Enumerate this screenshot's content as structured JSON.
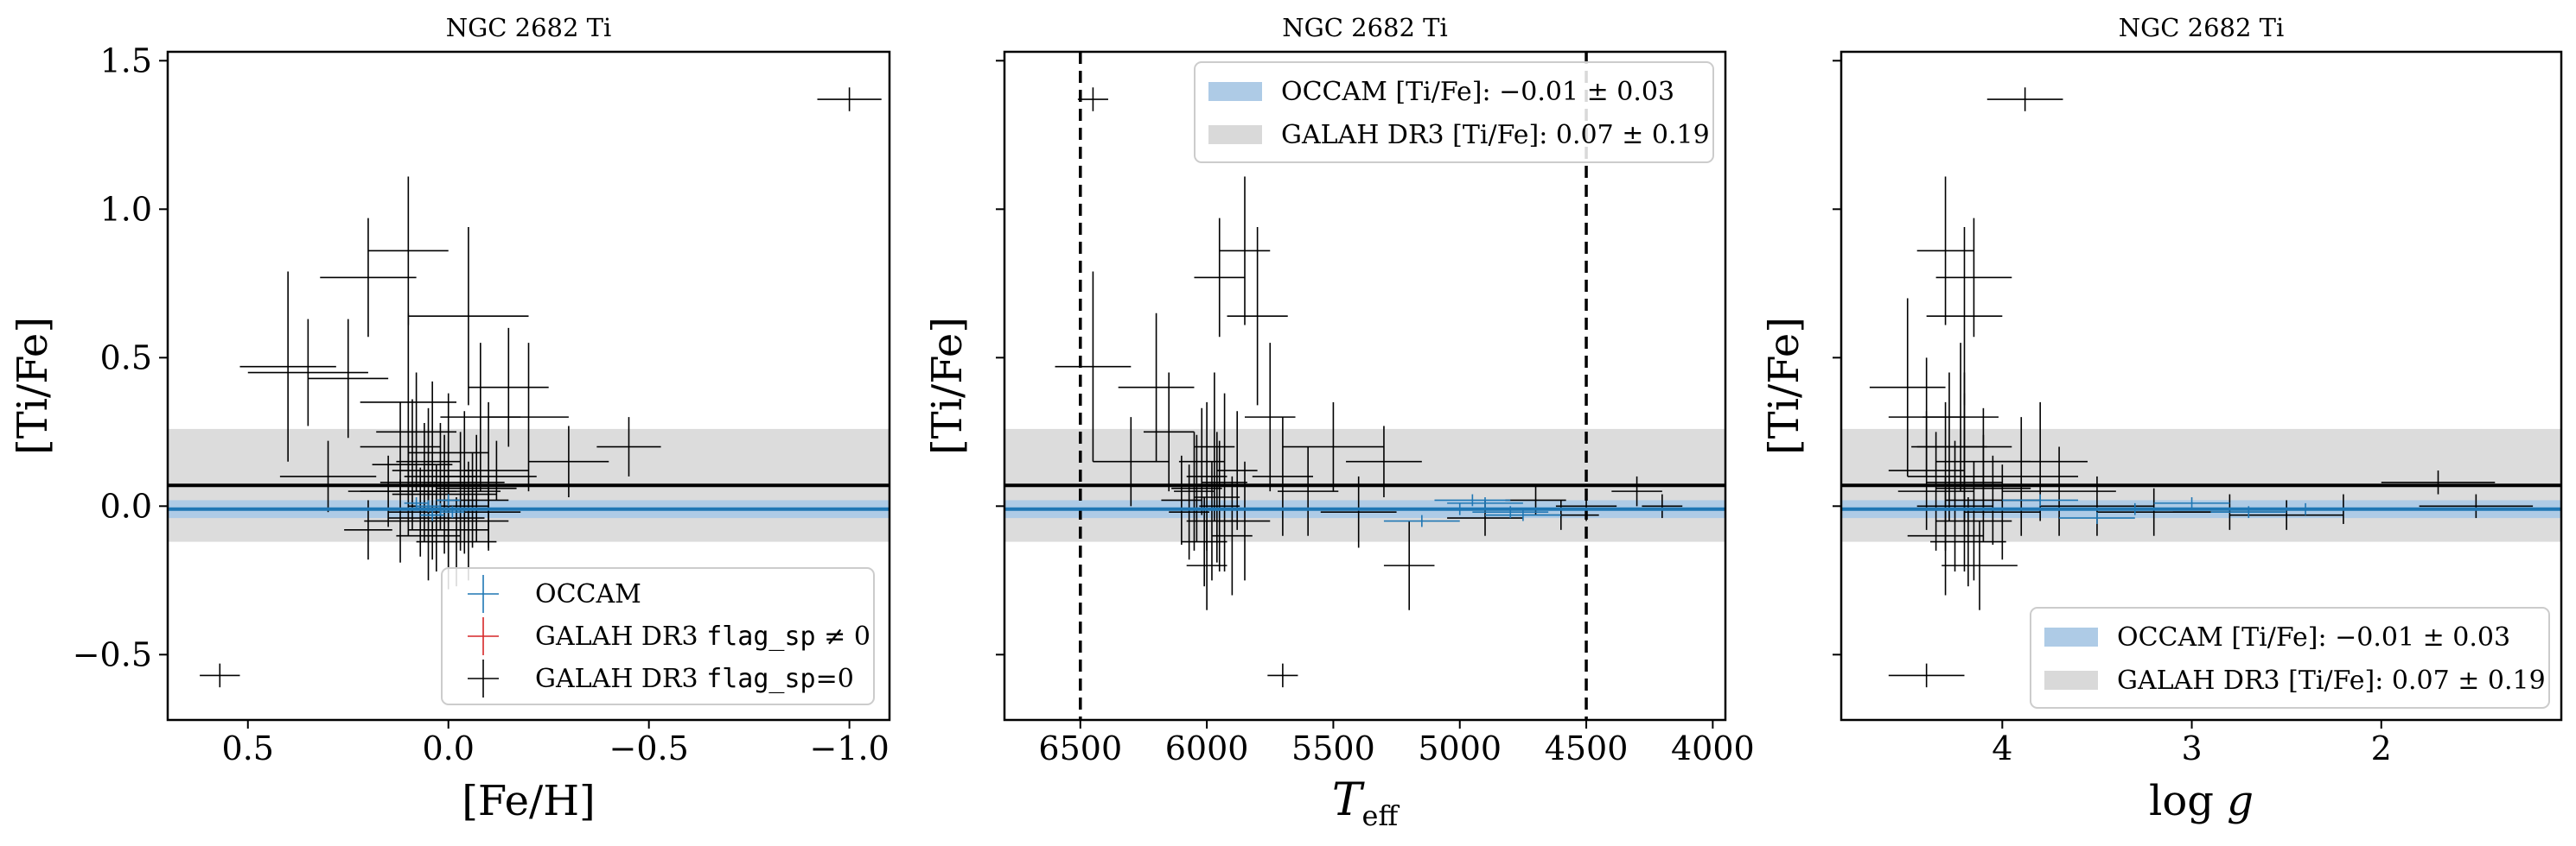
{
  "chart_data": [
    {
      "type": "scatter",
      "title": "NGC 2682 Ti",
      "xlabel": "[Fe/H]",
      "ylabel": "[Ti/Fe]",
      "xlim": [
        0.7,
        -1.1
      ],
      "ylim": [
        -0.72,
        1.53
      ],
      "x_ticks": [
        0.5,
        0.0,
        -0.5,
        -1.0
      ],
      "x_tick_labels": [
        "0.5",
        "0.0",
        "−0.5",
        "−1.0"
      ],
      "y_ticks": [
        -0.5,
        0.0,
        0.5,
        1.0,
        1.5
      ],
      "y_tick_labels": [
        "−0.5",
        "0.0",
        "0.5",
        "1.0",
        "1.5"
      ],
      "show_y_tick_labels": true,
      "vlines": [],
      "galah_band": {
        "center": 0.07,
        "sigma": 0.19
      },
      "occam_band": {
        "center": -0.01,
        "sigma": 0.03
      },
      "legend": {
        "placement": "lower-right",
        "kind": "markers",
        "entries": [
          {
            "label": "OCCAM",
            "color": "#1f77b4"
          },
          {
            "label": "GALAH DR3 ",
            "code": "flag_sp",
            "suffix": " ≠ 0",
            "color": "#d62728"
          },
          {
            "label": "GALAH DR3 ",
            "code": "flag_sp",
            "suffix": "=0",
            "color": "#000000"
          }
        ]
      },
      "occam_points": [
        {
          "x": 0.02,
          "y": -0.01,
          "xerr": 0.03,
          "yerr": 0.02
        },
        {
          "x": 0.05,
          "y": 0.0,
          "xerr": 0.03,
          "yerr": 0.02
        },
        {
          "x": -0.01,
          "y": -0.02,
          "xerr": 0.03,
          "yerr": 0.02
        },
        {
          "x": 0.08,
          "y": 0.01,
          "xerr": 0.03,
          "yerr": 0.02
        },
        {
          "x": 0.0,
          "y": 0.02,
          "xerr": 0.03,
          "yerr": 0.02
        },
        {
          "x": 0.04,
          "y": -0.03,
          "xerr": 0.03,
          "yerr": 0.02
        }
      ],
      "galah_points": [
        {
          "x": -1.0,
          "y": 1.37,
          "xerr": 0.08,
          "yerr": 0.04
        },
        {
          "x": 0.57,
          "y": -0.57,
          "xerr": 0.05,
          "yerr": 0.04
        },
        {
          "x": 0.1,
          "y": 0.86,
          "xerr": 0.1,
          "yerr": 0.25
        },
        {
          "x": 0.2,
          "y": 0.77,
          "xerr": 0.12,
          "yerr": 0.2
        },
        {
          "x": -0.05,
          "y": 0.64,
          "xerr": 0.15,
          "yerr": 0.3
        },
        {
          "x": 0.4,
          "y": 0.47,
          "xerr": 0.12,
          "yerr": 0.32
        },
        {
          "x": 0.35,
          "y": 0.45,
          "xerr": 0.15,
          "yerr": 0.18
        },
        {
          "x": 0.25,
          "y": 0.43,
          "xerr": 0.1,
          "yerr": 0.2
        },
        {
          "x": 0.1,
          "y": 0.35,
          "xerr": 0.12,
          "yerr": 0.3
        },
        {
          "x": -0.15,
          "y": 0.4,
          "xerr": 0.1,
          "yerr": 0.2
        },
        {
          "x": -0.2,
          "y": 0.3,
          "xerr": 0.1,
          "yerr": 0.25
        },
        {
          "x": -0.45,
          "y": 0.2,
          "xerr": 0.08,
          "yerr": 0.1
        },
        {
          "x": -0.3,
          "y": 0.15,
          "xerr": 0.1,
          "yerr": 0.12
        },
        {
          "x": 0.12,
          "y": 0.2,
          "xerr": 0.1,
          "yerr": 0.15
        },
        {
          "x": 0.3,
          "y": 0.1,
          "xerr": 0.12,
          "yerr": 0.12
        },
        {
          "x": 0.2,
          "y": -0.08,
          "xerr": 0.06,
          "yerr": 0.1
        },
        {
          "x": -0.1,
          "y": 0.1,
          "xerr": 0.12,
          "yerr": 0.25
        },
        {
          "x": 0.05,
          "y": 0.15,
          "xerr": 0.08,
          "yerr": 0.18
        },
        {
          "x": -0.03,
          "y": 0.05,
          "xerr": 0.1,
          "yerr": 0.2
        },
        {
          "x": 0.0,
          "y": 0.0,
          "xerr": 0.1,
          "yerr": 0.22
        },
        {
          "x": 0.05,
          "y": -0.1,
          "xerr": 0.08,
          "yerr": 0.15
        },
        {
          "x": -0.05,
          "y": -0.05,
          "xerr": 0.1,
          "yerr": 0.2
        },
        {
          "x": 0.1,
          "y": 0.05,
          "xerr": 0.12,
          "yerr": 0.15
        },
        {
          "x": -0.12,
          "y": 0.12,
          "xerr": 0.08,
          "yerr": 0.1
        },
        {
          "x": 0.08,
          "y": 0.25,
          "xerr": 0.1,
          "yerr": 0.2
        },
        {
          "x": -0.08,
          "y": 0.3,
          "xerr": 0.1,
          "yerr": 0.25
        },
        {
          "x": 0.15,
          "y": 0.05,
          "xerr": 0.1,
          "yerr": 0.12
        },
        {
          "x": 0.02,
          "y": 0.1,
          "xerr": 0.09,
          "yerr": 0.18
        },
        {
          "x": -0.02,
          "y": -0.12,
          "xerr": 0.1,
          "yerr": 0.15
        },
        {
          "x": 0.06,
          "y": 0.08,
          "xerr": 0.11,
          "yerr": 0.2
        },
        {
          "x": -0.06,
          "y": 0.02,
          "xerr": 0.09,
          "yerr": 0.16
        },
        {
          "x": 0.0,
          "y": 0.18,
          "xerr": 0.1,
          "yerr": 0.2
        },
        {
          "x": 0.03,
          "y": -0.04,
          "xerr": 0.12,
          "yerr": 0.18
        },
        {
          "x": -0.1,
          "y": -0.02,
          "xerr": 0.08,
          "yerr": 0.12
        },
        {
          "x": 0.12,
          "y": -0.05,
          "xerr": 0.09,
          "yerr": 0.14
        },
        {
          "x": 0.04,
          "y": 0.12,
          "xerr": 0.1,
          "yerr": 0.3
        },
        {
          "x": -0.04,
          "y": 0.08,
          "xerr": 0.1,
          "yerr": 0.24
        },
        {
          "x": 0.07,
          "y": -0.02,
          "xerr": 0.08,
          "yerr": 0.15
        },
        {
          "x": 0.01,
          "y": 0.04,
          "xerr": 0.13,
          "yerr": 0.2
        },
        {
          "x": -0.07,
          "y": 0.06,
          "xerr": 0.1,
          "yerr": 0.18
        },
        {
          "x": 0.09,
          "y": 0.14,
          "xerr": 0.1,
          "yerr": 0.22
        },
        {
          "x": 0.0,
          "y": -0.08,
          "xerr": 0.1,
          "yerr": 0.2
        }
      ]
    },
    {
      "type": "scatter",
      "title": "NGC 2682 Ti",
      "xlabel": "T_eff",
      "ylabel": "[Ti/Fe]",
      "xlim": [
        6800,
        3950
      ],
      "ylim": [
        -0.72,
        1.53
      ],
      "x_ticks": [
        6500,
        6000,
        5500,
        5000,
        4500,
        4000
      ],
      "x_tick_labels": [
        "6500",
        "6000",
        "5500",
        "5000",
        "4500",
        "4000"
      ],
      "y_ticks": [
        -0.5,
        0.0,
        0.5,
        1.0,
        1.5
      ],
      "y_tick_labels": [
        "−0.5",
        "0.0",
        "0.5",
        "1.0",
        "1.5"
      ],
      "show_y_tick_labels": false,
      "vlines": [
        6500,
        4500
      ],
      "galah_band": {
        "center": 0.07,
        "sigma": 0.19
      },
      "occam_band": {
        "center": -0.01,
        "sigma": 0.03
      },
      "legend": {
        "placement": "top-right",
        "kind": "patches",
        "entries": [
          {
            "label": "OCCAM [Ti/Fe]: −0.01 ± 0.03",
            "color": "#aecbe6"
          },
          {
            "label": "GALAH DR3 [Ti/Fe]: 0.07 ± 0.19",
            "color": "#d9d9d9"
          }
        ]
      },
      "occam_points": [
        {
          "x": 5000,
          "y": -0.01,
          "xerr": 150,
          "yerr": 0.02
        },
        {
          "x": 4900,
          "y": 0.01,
          "xerr": 150,
          "yerr": 0.02
        },
        {
          "x": 4800,
          "y": -0.02,
          "xerr": 150,
          "yerr": 0.02
        },
        {
          "x": 5150,
          "y": -0.05,
          "xerr": 150,
          "yerr": 0.02
        },
        {
          "x": 4950,
          "y": 0.02,
          "xerr": 150,
          "yerr": 0.02
        },
        {
          "x": 4750,
          "y": -0.03,
          "xerr": 150,
          "yerr": 0.02
        }
      ],
      "galah_points": [
        {
          "x": 6450,
          "y": 1.37,
          "xerr": 60,
          "yerr": 0.04
        },
        {
          "x": 5700,
          "y": -0.57,
          "xerr": 60,
          "yerr": 0.04
        },
        {
          "x": 5850,
          "y": 0.86,
          "xerr": 100,
          "yerr": 0.25
        },
        {
          "x": 5950,
          "y": 0.77,
          "xerr": 100,
          "yerr": 0.2
        },
        {
          "x": 5800,
          "y": 0.64,
          "xerr": 120,
          "yerr": 0.3
        },
        {
          "x": 6450,
          "y": 0.47,
          "xerr": 150,
          "yerr": 0.32
        },
        {
          "x": 6200,
          "y": 0.4,
          "xerr": 150,
          "yerr": 0.25
        },
        {
          "x": 6300,
          "y": 0.15,
          "xerr": 150,
          "yerr": 0.15
        },
        {
          "x": 5500,
          "y": 0.2,
          "xerr": 200,
          "yerr": 0.15
        },
        {
          "x": 5300,
          "y": 0.15,
          "xerr": 150,
          "yerr": 0.12
        },
        {
          "x": 5200,
          "y": -0.2,
          "xerr": 100,
          "yerr": 0.15
        },
        {
          "x": 4300,
          "y": 0.05,
          "xerr": 100,
          "yerr": 0.05
        },
        {
          "x": 4200,
          "y": 0.0,
          "xerr": 80,
          "yerr": 0.04
        },
        {
          "x": 4600,
          "y": -0.03,
          "xerr": 150,
          "yerr": 0.05
        },
        {
          "x": 6000,
          "y": 0.1,
          "xerr": 80,
          "yerr": 0.25
        },
        {
          "x": 5950,
          "y": 0.0,
          "xerr": 80,
          "yerr": 0.22
        },
        {
          "x": 6050,
          "y": 0.05,
          "xerr": 80,
          "yerr": 0.2
        },
        {
          "x": 5980,
          "y": -0.05,
          "xerr": 100,
          "yerr": 0.2
        },
        {
          "x": 6020,
          "y": 0.15,
          "xerr": 90,
          "yerr": 0.18
        },
        {
          "x": 5900,
          "y": -0.1,
          "xerr": 80,
          "yerr": 0.2
        },
        {
          "x": 6100,
          "y": 0.02,
          "xerr": 80,
          "yerr": 0.15
        },
        {
          "x": 5930,
          "y": 0.08,
          "xerr": 90,
          "yerr": 0.3
        },
        {
          "x": 6070,
          "y": -0.02,
          "xerr": 80,
          "yerr": 0.16
        },
        {
          "x": 5970,
          "y": 0.2,
          "xerr": 80,
          "yerr": 0.25
        },
        {
          "x": 6010,
          "y": -0.12,
          "xerr": 90,
          "yerr": 0.15
        },
        {
          "x": 5880,
          "y": 0.12,
          "xerr": 80,
          "yerr": 0.2
        },
        {
          "x": 6040,
          "y": 0.06,
          "xerr": 100,
          "yerr": 0.18
        },
        {
          "x": 5960,
          "y": 0.03,
          "xerr": 90,
          "yerr": 0.22
        },
        {
          "x": 5700,
          "y": 0.1,
          "xerr": 120,
          "yerr": 0.2
        },
        {
          "x": 5600,
          "y": 0.05,
          "xerr": 120,
          "yerr": 0.15
        },
        {
          "x": 5400,
          "y": -0.02,
          "xerr": 150,
          "yerr": 0.12
        },
        {
          "x": 6150,
          "y": 0.25,
          "xerr": 100,
          "yerr": 0.2
        },
        {
          "x": 5850,
          "y": -0.05,
          "xerr": 100,
          "yerr": 0.2
        },
        {
          "x": 6000,
          "y": -0.2,
          "xerr": 80,
          "yerr": 0.15
        },
        {
          "x": 5750,
          "y": 0.3,
          "xerr": 100,
          "yerr": 0.25
        },
        {
          "x": 4500,
          "y": 0.0,
          "xerr": 120,
          "yerr": 0.05
        },
        {
          "x": 4700,
          "y": 0.02,
          "xerr": 120,
          "yerr": 0.05
        },
        {
          "x": 4900,
          "y": -0.04,
          "xerr": 150,
          "yerr": 0.06
        }
      ]
    },
    {
      "type": "scatter",
      "title": "NGC 2682 Ti",
      "xlabel": "log g",
      "ylabel": "[Ti/Fe]",
      "xlim": [
        4.85,
        1.05
      ],
      "ylim": [
        -0.72,
        1.53
      ],
      "x_ticks": [
        4,
        3,
        2
      ],
      "x_tick_labels": [
        "4",
        "3",
        "2"
      ],
      "y_ticks": [
        -0.5,
        0.0,
        0.5,
        1.0,
        1.5
      ],
      "y_tick_labels": [
        "−0.5",
        "0.0",
        "0.5",
        "1.0",
        "1.5"
      ],
      "show_y_tick_labels": false,
      "vlines": [],
      "galah_band": {
        "center": 0.07,
        "sigma": 0.19
      },
      "occam_band": {
        "center": -0.01,
        "sigma": 0.03
      },
      "legend": {
        "placement": "lower-right",
        "kind": "patches",
        "entries": [
          {
            "label": "OCCAM [Ti/Fe]: −0.01 ± 0.03",
            "color": "#aecbe6"
          },
          {
            "label": "GALAH DR3 [Ti/Fe]: 0.07 ± 0.19",
            "color": "#d9d9d9"
          }
        ]
      },
      "occam_points": [
        {
          "x": 3.3,
          "y": -0.01,
          "xerr": 0.2,
          "yerr": 0.02
        },
        {
          "x": 3.0,
          "y": 0.01,
          "xerr": 0.2,
          "yerr": 0.02
        },
        {
          "x": 2.7,
          "y": -0.02,
          "xerr": 0.2,
          "yerr": 0.02
        },
        {
          "x": 3.5,
          "y": -0.04,
          "xerr": 0.2,
          "yerr": 0.02
        },
        {
          "x": 2.4,
          "y": -0.01,
          "xerr": 0.2,
          "yerr": 0.02
        },
        {
          "x": 3.8,
          "y": 0.02,
          "xerr": 0.2,
          "yerr": 0.02
        }
      ],
      "galah_points": [
        {
          "x": 3.88,
          "y": 1.37,
          "xerr": 0.2,
          "yerr": 0.04
        },
        {
          "x": 4.4,
          "y": -0.57,
          "xerr": 0.2,
          "yerr": 0.04
        },
        {
          "x": 4.3,
          "y": 0.86,
          "xerr": 0.15,
          "yerr": 0.25
        },
        {
          "x": 4.15,
          "y": 0.77,
          "xerr": 0.2,
          "yerr": 0.2
        },
        {
          "x": 4.2,
          "y": 0.64,
          "xerr": 0.2,
          "yerr": 0.3
        },
        {
          "x": 4.5,
          "y": 0.4,
          "xerr": 0.2,
          "yerr": 0.3
        },
        {
          "x": 4.4,
          "y": 0.3,
          "xerr": 0.2,
          "yerr": 0.2
        },
        {
          "x": 4.2,
          "y": 0.2,
          "xerr": 0.25,
          "yerr": 0.25
        },
        {
          "x": 4.3,
          "y": 0.1,
          "xerr": 0.2,
          "yerr": 0.25
        },
        {
          "x": 4.25,
          "y": 0.0,
          "xerr": 0.2,
          "yerr": 0.22
        },
        {
          "x": 4.35,
          "y": 0.05,
          "xerr": 0.2,
          "yerr": 0.2
        },
        {
          "x": 4.15,
          "y": -0.05,
          "xerr": 0.2,
          "yerr": 0.2
        },
        {
          "x": 4.1,
          "y": 0.15,
          "xerr": 0.25,
          "yerr": 0.18
        },
        {
          "x": 4.3,
          "y": -0.1,
          "xerr": 0.2,
          "yerr": 0.2
        },
        {
          "x": 4.05,
          "y": 0.02,
          "xerr": 0.25,
          "yerr": 0.15
        },
        {
          "x": 4.2,
          "y": 0.08,
          "xerr": 0.2,
          "yerr": 0.3
        },
        {
          "x": 4.0,
          "y": -0.02,
          "xerr": 0.2,
          "yerr": 0.16
        },
        {
          "x": 4.28,
          "y": 0.2,
          "xerr": 0.2,
          "yerr": 0.25
        },
        {
          "x": 4.18,
          "y": -0.12,
          "xerr": 0.2,
          "yerr": 0.15
        },
        {
          "x": 4.4,
          "y": 0.12,
          "xerr": 0.2,
          "yerr": 0.2
        },
        {
          "x": 4.1,
          "y": 0.06,
          "xerr": 0.25,
          "yerr": 0.18
        },
        {
          "x": 3.9,
          "y": 0.1,
          "xerr": 0.3,
          "yerr": 0.2
        },
        {
          "x": 3.7,
          "y": 0.05,
          "xerr": 0.3,
          "yerr": 0.15
        },
        {
          "x": 3.5,
          "y": 0.0,
          "xerr": 0.3,
          "yerr": 0.1
        },
        {
          "x": 3.2,
          "y": -0.02,
          "xerr": 0.3,
          "yerr": 0.08
        },
        {
          "x": 2.8,
          "y": -0.02,
          "xerr": 0.3,
          "yerr": 0.06
        },
        {
          "x": 2.5,
          "y": -0.03,
          "xerr": 0.3,
          "yerr": 0.05
        },
        {
          "x": 1.7,
          "y": 0.08,
          "xerr": 0.3,
          "yerr": 0.04
        },
        {
          "x": 1.5,
          "y": 0.0,
          "xerr": 0.3,
          "yerr": 0.04
        },
        {
          "x": 2.2,
          "y": -0.01,
          "xerr": 0.3,
          "yerr": 0.05
        },
        {
          "x": 4.22,
          "y": 0.3,
          "xerr": 0.2,
          "yerr": 0.25
        },
        {
          "x": 4.12,
          "y": -0.2,
          "xerr": 0.2,
          "yerr": 0.15
        },
        {
          "x": 3.8,
          "y": 0.15,
          "xerr": 0.25,
          "yerr": 0.2
        }
      ]
    }
  ]
}
